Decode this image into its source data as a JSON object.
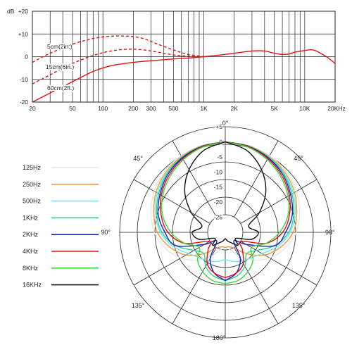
{
  "colors": {
    "grid": "#222222",
    "response": "#e01010",
    "f125": "#e6e6e6",
    "f250": "#f39a2e",
    "f500": "#6fe8f0",
    "f1k": "#2ed28a",
    "f2k": "#1422c8",
    "f4k": "#e01010",
    "f8k": "#3ad83a",
    "f16k": "#111111"
  },
  "chart_data": [
    {
      "type": "line",
      "xscale": "log",
      "xlim": [
        20,
        20000
      ],
      "ylim": [
        -20,
        20
      ],
      "ylabel": "dB",
      "x_tick_labels": [
        "20",
        "50",
        "100",
        "200",
        "300",
        "500",
        "1K",
        "2K",
        "5K",
        "10K",
        "20KHz"
      ],
      "x_tick_values": [
        20,
        50,
        100,
        200,
        300,
        500,
        1000,
        2000,
        5000,
        10000,
        20000
      ],
      "y_tick_labels": [
        "+20",
        "+10",
        "0",
        "-10",
        "-20"
      ],
      "y_tick_values": [
        20,
        10,
        0,
        -10,
        -20
      ],
      "series": [
        {
          "name": "5cm(2in.)",
          "style": "dashed",
          "x": [
            20,
            30,
            50,
            80,
            120,
            180,
            250,
            350,
            500,
            700,
            1000
          ],
          "y": [
            -2.5,
            1.5,
            5.5,
            8,
            9,
            9,
            8,
            5.5,
            3,
            1,
            0
          ]
        },
        {
          "name": "15cm(6in.)",
          "style": "dashed",
          "x": [
            20,
            30,
            50,
            80,
            120,
            180,
            250,
            350,
            500,
            700,
            1000
          ],
          "y": [
            -12,
            -8,
            -3,
            0.5,
            2.5,
            3.3,
            3,
            2,
            0.8,
            0.2,
            0
          ]
        },
        {
          "name": "60cm(2ft.)",
          "style": "solid",
          "x": [
            20,
            30,
            50,
            80,
            120,
            200,
            300,
            500,
            700,
            1000,
            1500,
            2000,
            3000,
            4000,
            5000,
            6000,
            7000,
            8000,
            10000,
            12000,
            14000,
            17000,
            20000
          ],
          "y": [
            -20,
            -16,
            -11,
            -6.5,
            -4,
            -2.5,
            -1.8,
            -1,
            -0.6,
            0,
            0.8,
            1.5,
            2.5,
            2.5,
            1.5,
            1,
            1.2,
            2,
            2.7,
            3,
            1.8,
            -0.5,
            -3
          ]
        }
      ]
    },
    {
      "type": "polar",
      "angle_labels": [
        "0°",
        "45°",
        "45°",
        "90°",
        "90°",
        "135°",
        "135°",
        "180°"
      ],
      "r_tick_labels": [
        "+5",
        "0",
        "-5",
        "-10",
        "-15",
        "-20",
        "-25"
      ],
      "r_tick_values": [
        5,
        0,
        -5,
        -10,
        -15,
        -20,
        -25
      ],
      "rlim": [
        -30,
        5
      ],
      "angles_deg": [
        0,
        15,
        30,
        45,
        60,
        75,
        90,
        105,
        120,
        135,
        150,
        165,
        180
      ],
      "series": [
        {
          "name": "125Hz",
          "color_key": "f125",
          "values": [
            0,
            -0.2,
            -0.7,
            -1.5,
            -2.8,
            -4.5,
            -6.5,
            -9.5,
            -13,
            -17,
            -21,
            -24,
            -25
          ]
        },
        {
          "name": "250Hz",
          "color_key": "f250",
          "values": [
            0,
            -0.3,
            -1,
            -2,
            -3.5,
            -5.5,
            -7.5,
            -11,
            -15,
            -20,
            -24,
            -25,
            -25
          ]
        },
        {
          "name": "500Hz",
          "color_key": "f500",
          "values": [
            0,
            -0.4,
            -1.2,
            -2.4,
            -4,
            -6,
            -8.5,
            -12,
            -16,
            -18,
            -19,
            -20,
            -21
          ]
        },
        {
          "name": "1KHz",
          "color_key": "f1k",
          "values": [
            0,
            -0.4,
            -1.3,
            -2.6,
            -4.5,
            -6.5,
            -9,
            -13,
            -18,
            -20,
            -17,
            -15,
            -14
          ]
        },
        {
          "name": "2KHz",
          "color_key": "f2k",
          "values": [
            0,
            -0.5,
            -1.5,
            -3,
            -5,
            -7,
            -10,
            -13,
            -22,
            -26,
            -20,
            -16,
            -14
          ]
        },
        {
          "name": "4KHz",
          "color_key": "f4k",
          "values": [
            0,
            -0.6,
            -1.8,
            -3.5,
            -5.5,
            -8,
            -11,
            -16,
            -24,
            -22,
            -18,
            -16,
            -15
          ]
        },
        {
          "name": "8KHz",
          "color_key": "f8k",
          "values": [
            0,
            -0.8,
            -2.2,
            -4,
            -6,
            -8.5,
            -12,
            -16,
            -20,
            -17,
            -15,
            -13.5,
            -13
          ]
        },
        {
          "name": "16KHz",
          "color_key": "f16k",
          "values": [
            0,
            -2,
            -6,
            -11,
            -17,
            -22,
            -19,
            -21,
            -26,
            -24,
            -26,
            -27,
            -28
          ]
        }
      ]
    }
  ]
}
